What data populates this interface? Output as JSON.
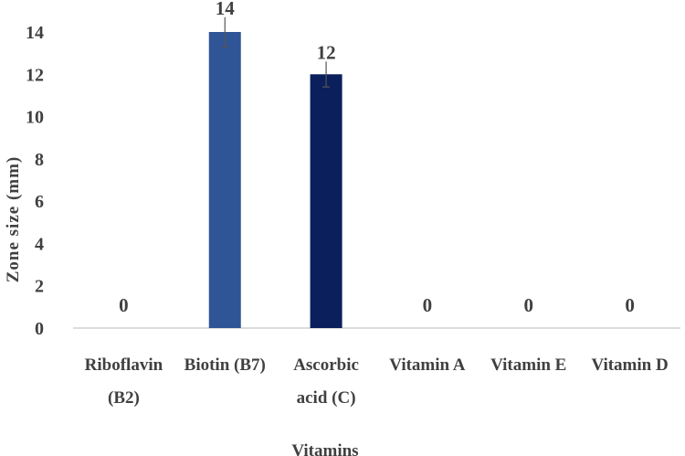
{
  "chart_data": {
    "type": "bar",
    "title": "",
    "xlabel": "Vitamins",
    "ylabel": "Zone size (mm)",
    "ylim": [
      0,
      14
    ],
    "yticks": [
      0,
      2,
      4,
      6,
      8,
      10,
      12,
      14
    ],
    "grid": false,
    "categories": [
      [
        "Riboflavin",
        "(B2)"
      ],
      [
        "Biotin (B7)"
      ],
      [
        "Ascorbic",
        "acid (C)"
      ],
      [
        "Vitamin A"
      ],
      [
        "Vitamin E"
      ],
      [
        "Vitamin D"
      ]
    ],
    "values": [
      0,
      14,
      12,
      0,
      0,
      0
    ],
    "errors": [
      0,
      0.7,
      0.6,
      0,
      0,
      0
    ],
    "data_labels": [
      "0",
      "14",
      "12",
      "0",
      "0",
      "0"
    ],
    "colors": [
      "#2f5597",
      "#2f5597",
      "#0a1f5c",
      "#2f5597",
      "#2f5597",
      "#2f5597"
    ]
  }
}
